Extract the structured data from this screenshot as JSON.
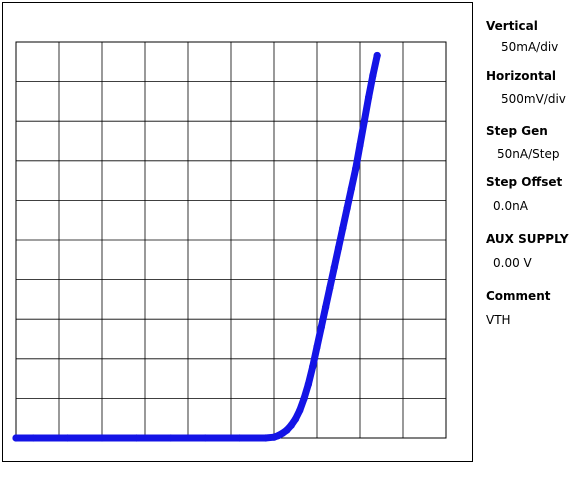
{
  "chart_data": {
    "type": "scatter",
    "title": "",
    "xlabel": "",
    "ylabel": "",
    "grid": true,
    "xlim": [
      0,
      5000
    ],
    "ylim": [
      0,
      500
    ],
    "x_divisions": 10,
    "y_divisions": 10,
    "x_unit": "mV",
    "y_unit": "mA",
    "series": [
      {
        "color": "#1414e6",
        "x": [
          0,
          200,
          600,
          1000,
          1400,
          1800,
          2200,
          2600,
          2900,
          3000,
          3050,
          3100,
          3150,
          3200,
          3250,
          3300,
          3350,
          3400,
          3450,
          3500,
          3550,
          3600,
          3650,
          3700,
          3750,
          3800,
          3850,
          3900,
          3950,
          4000,
          4050,
          4100,
          4150,
          4200
        ],
        "y": [
          0,
          0,
          0,
          0,
          0,
          0,
          0,
          0,
          0,
          1,
          3,
          6,
          10,
          16,
          24,
          35,
          50,
          68,
          90,
          115,
          140,
          165,
          190,
          215,
          240,
          265,
          290,
          315,
          340,
          370,
          400,
          430,
          458,
          483
        ]
      }
    ]
  },
  "panel": {
    "vertical": {
      "label": "Vertical",
      "value": "50mA/div"
    },
    "horizontal": {
      "label": "Horizontal",
      "value": "500mV/div"
    },
    "step_gen": {
      "label": "Step Gen",
      "value": "50nA/Step"
    },
    "step_offset": {
      "label": "Step Offset",
      "value": "0.0nA"
    },
    "aux_supply": {
      "label": "AUX SUPPLY",
      "value": "0.00 V"
    },
    "comment": {
      "label": "Comment",
      "value": "VTH"
    }
  }
}
